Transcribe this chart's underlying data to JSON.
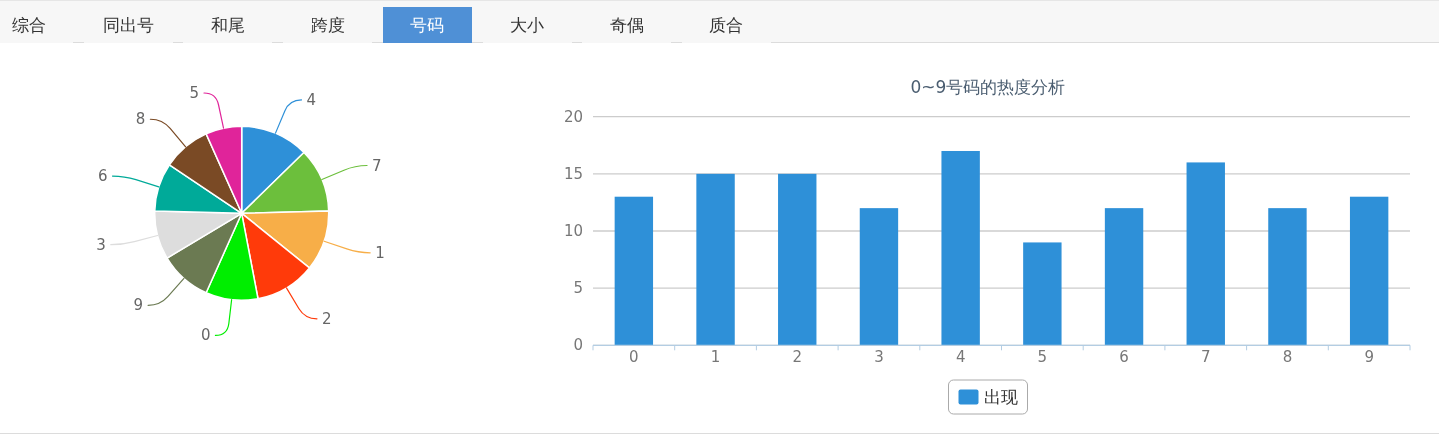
{
  "chart_data": [
    {
      "type": "other",
      "categories": [
        "综合",
        "同出号",
        "和尾",
        "跨度",
        "号码",
        "大小",
        "奇偶",
        "质合"
      ],
      "colors": [
        "#f7f7f7",
        "#f7f7f7",
        "#f7f7f7",
        "#f7f7f7",
        "#4f90d6",
        "#f7f7f7",
        "#f7f7f7",
        "#f7f7f7"
      ]
    },
    {
      "type": "pie",
      "categories": [
        "4",
        "7",
        "1",
        "2",
        "0",
        "9",
        "3",
        "6",
        "8",
        "5"
      ],
      "values": [
        12.7,
        11.9,
        11.2,
        11.2,
        9.7,
        9.7,
        9.0,
        9.0,
        8.9,
        6.7
      ],
      "colors": [
        "#2e90d8",
        "#6cbf3c",
        "#f7ae48",
        "#ff3a0a",
        "#00ee00",
        "#6b7a52",
        "#dddddd",
        "#00aa99",
        "#7a4a25",
        "#e0249a"
      ]
    },
    {
      "type": "bar",
      "title": "0~9号码的热度分析",
      "categories": [
        "0",
        "1",
        "2",
        "3",
        "4",
        "5",
        "6",
        "7",
        "8",
        "9"
      ],
      "series": [
        {
          "name": "出现",
          "color": "#2e90d8",
          "values": [
            13,
            15,
            15,
            12,
            17,
            9,
            12,
            16,
            12,
            13
          ]
        }
      ],
      "ylim": [
        0,
        20
      ],
      "yticks": [
        0,
        5,
        10,
        15,
        20
      ],
      "grid": "y",
      "legend": "bottom"
    }
  ]
}
